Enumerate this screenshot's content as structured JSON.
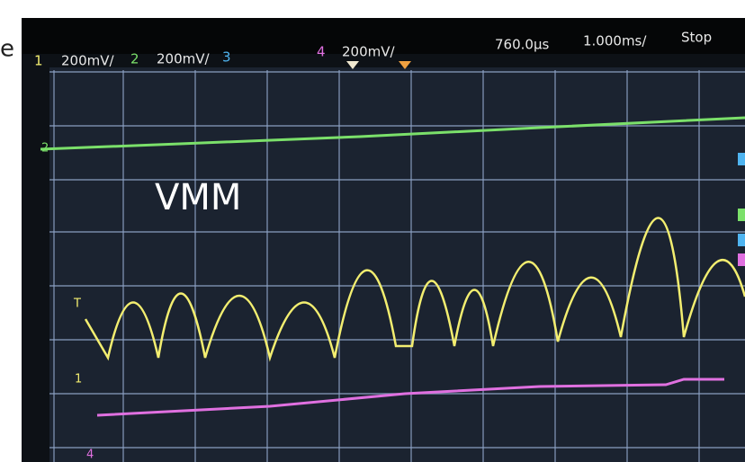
{
  "caption_fragment": "e",
  "status_bar": {
    "ch1_label": "1",
    "ch1_scale": "200mV/",
    "ch2_label": "2",
    "ch2_scale": "200mV/",
    "ch3_label": "3",
    "ch4_label": "4",
    "ch4_scale": "200mV/",
    "time_offset": "760.0µs",
    "time_scale": "1.000ms/",
    "run_state": "Stop"
  },
  "overlay_label": "VMM",
  "trace_markers": {
    "ch2": "2",
    "trigger": "T",
    "ch1": "1",
    "ch4": "4"
  }
}
